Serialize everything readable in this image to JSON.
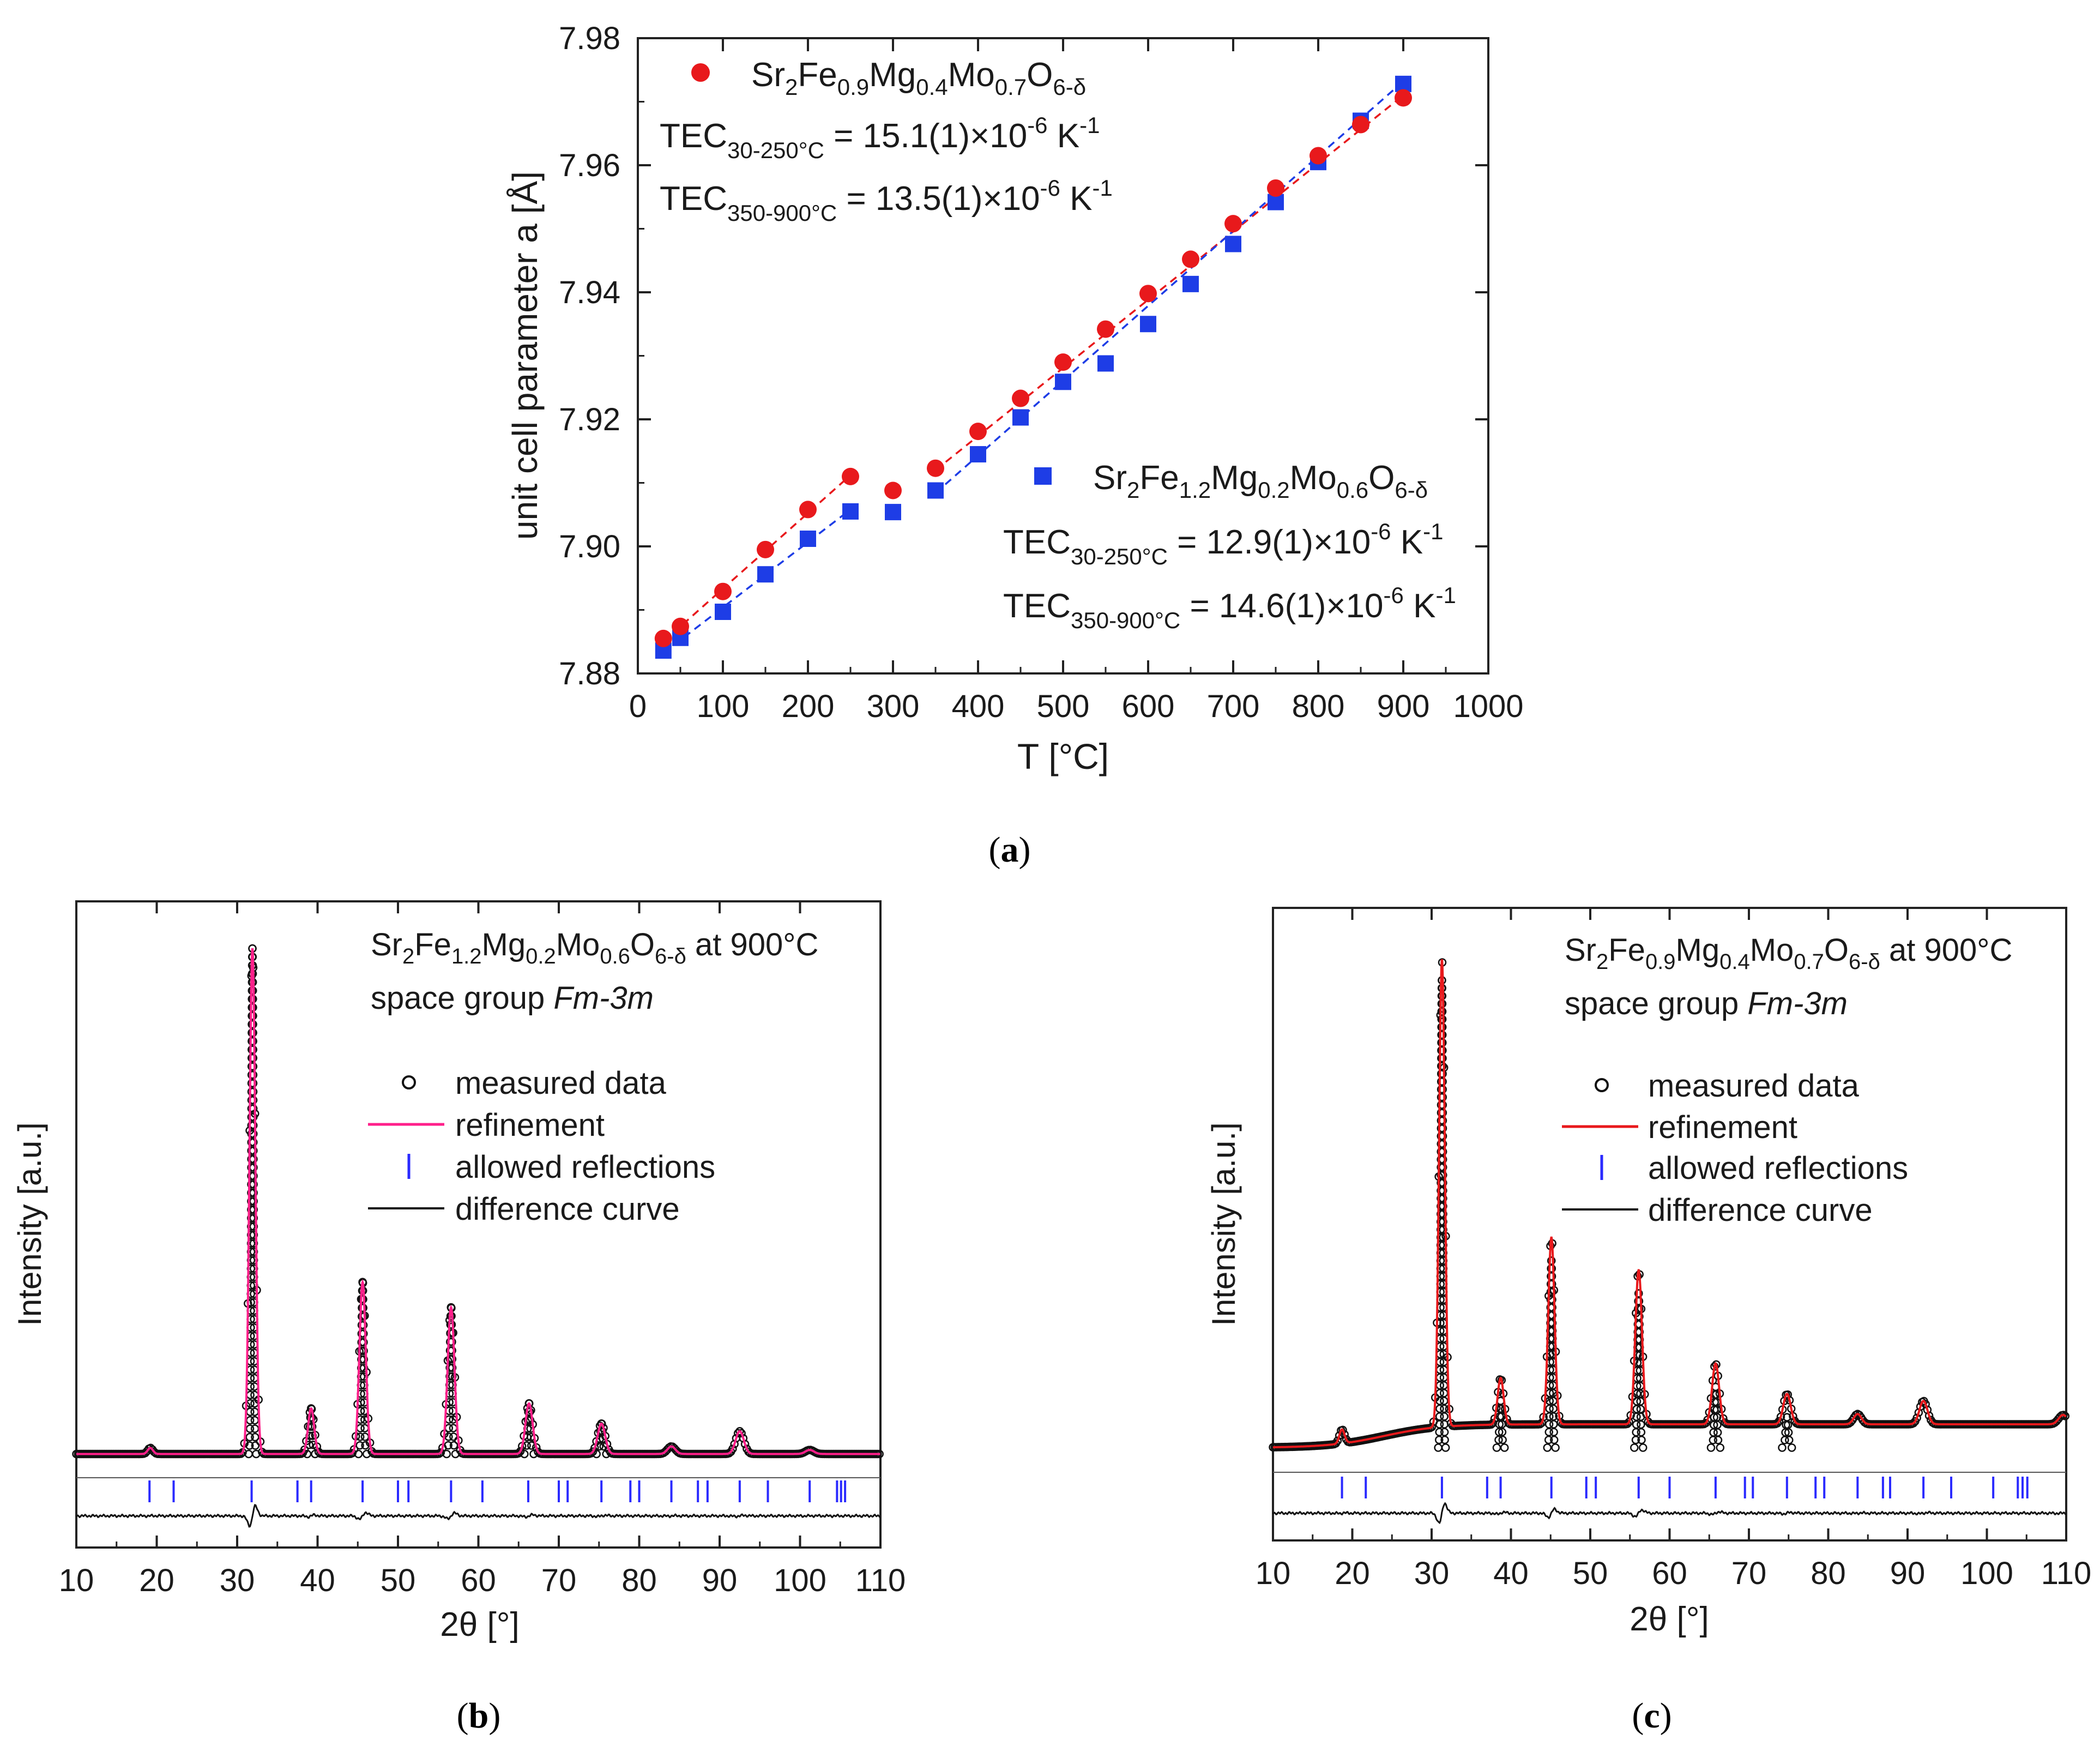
{
  "panels": {
    "a_label": "a",
    "b_label": "b",
    "c_label": "c"
  },
  "colors": {
    "red": "#e8191c",
    "blue": "#1e3de6",
    "pink": "#ff1f8a",
    "black": "#111111",
    "tick_blue": "#2a2aff"
  },
  "chart_data": [
    {
      "id": "a",
      "type": "scatter",
      "xlabel": "T [°C]",
      "ylabel": "unit cell parameter a [Å]",
      "xlim": [
        0,
        1000
      ],
      "ylim": [
        7.88,
        7.98
      ],
      "xticks": [
        "0",
        "100",
        "200",
        "300",
        "400",
        "500",
        "600",
        "700",
        "800",
        "900",
        "1000"
      ],
      "yticks": [
        "7.88",
        "7.90",
        "7.92",
        "7.94",
        "7.96",
        "7.98"
      ],
      "series": [
        {
          "name": "Sr2Fe0.9Mg0.4Mo0.7O6-δ",
          "marker": "circle",
          "color": "#e8191c",
          "x": [
            30,
            50,
            100,
            150,
            200,
            250,
            300,
            350,
            400,
            450,
            500,
            550,
            600,
            650,
            700,
            750,
            800,
            850,
            900
          ],
          "y": [
            7.8855,
            7.8874,
            7.8929,
            7.8995,
            7.9058,
            7.911,
            7.9088,
            7.9123,
            7.9181,
            7.9233,
            7.929,
            7.9342,
            7.9398,
            7.9452,
            7.9508,
            7.9564,
            7.9615,
            7.9664,
            7.9706
          ],
          "TEC_30_250": "TEC30-250°C = 15.1(1)×10-6 K-1",
          "TEC_350_900": "TEC350-900°C = 13.5(1)×10-6 K-1"
        },
        {
          "name": "Sr2Fe1.2Mg0.2Mo0.6O6-δ",
          "marker": "square",
          "color": "#1e3de6",
          "x": [
            30,
            50,
            100,
            150,
            200,
            250,
            300,
            350,
            400,
            450,
            500,
            550,
            600,
            650,
            700,
            750,
            800,
            850,
            900
          ],
          "y": [
            7.8836,
            7.8856,
            7.8897,
            7.8956,
            7.9012,
            7.9055,
            7.9054,
            7.9088,
            7.9145,
            7.9203,
            7.9259,
            7.9288,
            7.935,
            7.9413,
            7.9476,
            7.9542,
            7.9605,
            7.967,
            7.9728
          ],
          "TEC_30_250": "TEC30-250°C = 12.9(1)×10-6 K-1",
          "TEC_350_900": "TEC350-900°C = 14.6(1)×10-6 K-1"
        }
      ],
      "fits": [
        {
          "series": "red",
          "x": [
            30,
            250
          ],
          "y": [
            7.885,
            7.9112
          ]
        },
        {
          "series": "red",
          "x": [
            350,
            900
          ],
          "y": [
            7.912,
            7.971
          ]
        },
        {
          "series": "blue",
          "x": [
            30,
            250
          ],
          "y": [
            7.8832,
            7.9058
          ]
        },
        {
          "series": "blue",
          "x": [
            350,
            900
          ],
          "y": [
            7.9084,
            7.9732
          ]
        }
      ]
    },
    {
      "id": "b",
      "type": "line",
      "title_line1": "Sr2Fe1.2Mg0.2Mo0.6O6-δ at 900°C",
      "title_line2": "space group Fm-3m",
      "xlabel": "2θ [°]",
      "ylabel": "Intensity [a.u.]",
      "xlim": [
        10,
        110
      ],
      "xticks": [
        "10",
        "20",
        "30",
        "40",
        "50",
        "60",
        "70",
        "80",
        "90",
        "100",
        "110"
      ],
      "legend": [
        "measured data",
        "refinement",
        "allowed reflections",
        "difference curve"
      ],
      "refinement_color": "#ff1f8a",
      "baseline": 0.02,
      "peaks": [
        {
          "pos": 19.2,
          "h": 0.012
        },
        {
          "pos": 31.9,
          "h": 1.0
        },
        {
          "pos": 39.2,
          "h": 0.09
        },
        {
          "pos": 45.6,
          "h": 0.34
        },
        {
          "pos": 56.6,
          "h": 0.29
        },
        {
          "pos": 66.3,
          "h": 0.1
        },
        {
          "pos": 75.3,
          "h": 0.06
        },
        {
          "pos": 84.0,
          "h": 0.015
        },
        {
          "pos": 92.5,
          "h": 0.045
        },
        {
          "pos": 101.2,
          "h": 0.008
        }
      ],
      "reflections": [
        19.1,
        22.1,
        31.8,
        37.5,
        39.2,
        45.6,
        50.0,
        51.3,
        56.6,
        60.5,
        66.2,
        70.0,
        71.1,
        75.3,
        78.9,
        80.0,
        84.0,
        87.3,
        88.5,
        92.5,
        96.0,
        101.2,
        104.6,
        105.1,
        105.6
      ]
    },
    {
      "id": "c",
      "type": "line",
      "title_line1": "Sr2Fe0.9Mg0.4Mo0.7O6-δ at 900°C",
      "title_line2": "space group Fm-3m",
      "xlabel": "2θ [°]",
      "ylabel": "Intensity [a.u.]",
      "xlim": [
        10,
        110
      ],
      "xticks": [
        "10",
        "20",
        "30",
        "40",
        "50",
        "60",
        "70",
        "80",
        "90",
        "100",
        "110"
      ],
      "legend": [
        "measured data",
        "refinement",
        "allowed reflections",
        "difference curve"
      ],
      "refinement_color": "#e8191c",
      "baseline": 0.02,
      "hump": 0.05,
      "peaks": [
        {
          "pos": 18.7,
          "h": 0.03
        },
        {
          "pos": 31.3,
          "h": 1.0
        },
        {
          "pos": 38.7,
          "h": 0.1
        },
        {
          "pos": 45.1,
          "h": 0.4
        },
        {
          "pos": 56.1,
          "h": 0.33
        },
        {
          "pos": 65.8,
          "h": 0.13
        },
        {
          "pos": 74.8,
          "h": 0.065
        },
        {
          "pos": 83.7,
          "h": 0.022
        },
        {
          "pos": 92.0,
          "h": 0.05
        },
        {
          "pos": 109.6,
          "h": 0.02
        }
      ],
      "reflections": [
        18.7,
        21.7,
        31.3,
        37.0,
        38.7,
        45.1,
        49.5,
        50.7,
        56.1,
        60.0,
        65.8,
        69.5,
        70.5,
        74.8,
        78.4,
        79.5,
        83.7,
        86.9,
        87.8,
        92.0,
        95.5,
        100.8,
        103.9,
        104.5,
        105.1
      ]
    }
  ]
}
